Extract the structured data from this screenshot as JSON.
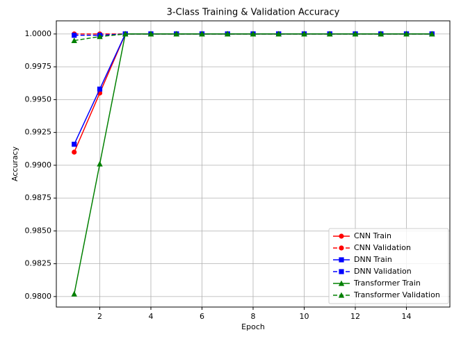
{
  "chart_data": {
    "type": "line",
    "title": "3-Class Training & Validation Accuracy",
    "xlabel": "Epoch",
    "ylabel": "Accuracy",
    "x": [
      1,
      2,
      3,
      4,
      5,
      6,
      7,
      8,
      9,
      10,
      11,
      12,
      13,
      14,
      15
    ],
    "series": [
      {
        "name": "CNN Train",
        "color": "#ff0000",
        "linestyle": "solid",
        "marker": "circle",
        "values": [
          0.991,
          0.9955,
          1.0,
          1.0,
          1.0,
          1.0,
          1.0,
          1.0,
          1.0,
          1.0,
          1.0,
          1.0,
          1.0,
          1.0,
          1.0
        ]
      },
      {
        "name": "CNN Validation",
        "color": "#ff0000",
        "linestyle": "dashed",
        "marker": "circle",
        "values": [
          1.0,
          1.0,
          1.0,
          1.0,
          1.0,
          1.0,
          1.0,
          1.0,
          1.0,
          1.0,
          1.0,
          1.0,
          1.0,
          1.0,
          1.0
        ]
      },
      {
        "name": "DNN Train",
        "color": "#0000ff",
        "linestyle": "solid",
        "marker": "square",
        "values": [
          0.9916,
          0.9958,
          1.0,
          1.0,
          1.0,
          1.0,
          1.0,
          1.0,
          1.0,
          1.0,
          1.0,
          1.0,
          1.0,
          1.0,
          1.0
        ]
      },
      {
        "name": "DNN Validation",
        "color": "#0000ff",
        "linestyle": "dashed",
        "marker": "square",
        "values": [
          0.9999,
          0.9999,
          1.0,
          1.0,
          1.0,
          1.0,
          1.0,
          1.0,
          1.0,
          1.0,
          1.0,
          1.0,
          1.0,
          1.0,
          1.0
        ]
      },
      {
        "name": "Transformer Train",
        "color": "#008000",
        "linestyle": "solid",
        "marker": "triangle",
        "values": [
          0.9802,
          0.9901,
          1.0,
          1.0,
          1.0,
          1.0,
          1.0,
          1.0,
          1.0,
          1.0,
          1.0,
          1.0,
          1.0,
          1.0,
          1.0
        ]
      },
      {
        "name": "Transformer Validation",
        "color": "#008000",
        "linestyle": "dashed",
        "marker": "triangle",
        "values": [
          0.9995,
          0.9998,
          1.0,
          1.0,
          1.0,
          1.0,
          1.0,
          1.0,
          1.0,
          1.0,
          1.0,
          1.0,
          1.0,
          1.0,
          1.0
        ]
      }
    ],
    "xlim": [
      0.3,
      15.7
    ],
    "xticks": [
      2,
      4,
      6,
      8,
      10,
      12,
      14
    ],
    "ylim": [
      0.9792,
      1.001
    ],
    "yticks": [
      {
        "value": 0.98,
        "label": "0.9800"
      },
      {
        "value": 0.9825,
        "label": "0.9825"
      },
      {
        "value": 0.985,
        "label": "0.9850"
      },
      {
        "value": 0.9875,
        "label": "0.9875"
      },
      {
        "value": 0.99,
        "label": "0.9900"
      },
      {
        "value": 0.9925,
        "label": "0.9925"
      },
      {
        "value": 0.995,
        "label": "0.9950"
      },
      {
        "value": 0.9975,
        "label": "0.9975"
      },
      {
        "value": 1.0,
        "label": "1.0000"
      }
    ],
    "grid": true,
    "legend": "lower right"
  }
}
